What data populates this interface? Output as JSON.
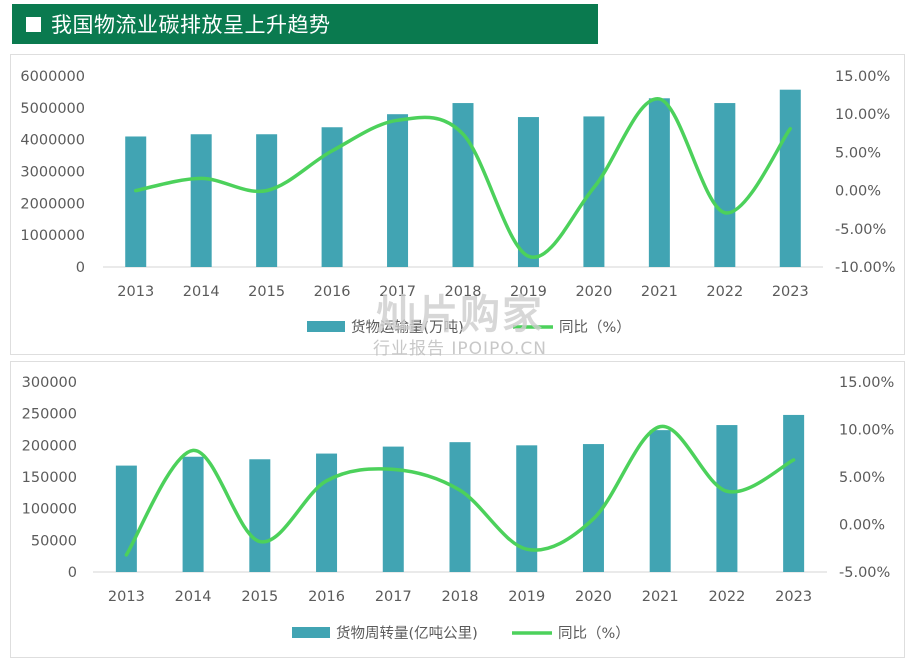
{
  "header": {
    "title": "我国物流业碳排放呈上升趋势"
  },
  "watermark": {
    "main": "灿片购家",
    "sub": "行业报告 IPOIPO.CN"
  },
  "colors": {
    "header_bg": "#0a7a4f",
    "bar": "#41a4b3",
    "line": "#4cd15b",
    "axis_text": "#5b5b5b"
  },
  "chart_data": [
    {
      "type": "bar",
      "categories": [
        "2013",
        "2014",
        "2015",
        "2016",
        "2017",
        "2018",
        "2019",
        "2020",
        "2021",
        "2022",
        "2023"
      ],
      "series": [
        {
          "name": "货物运输量(万吨)",
          "type": "bar",
          "axis": "left",
          "values": [
            4100000,
            4170000,
            4170000,
            4390000,
            4800000,
            5150000,
            4710000,
            4730000,
            5300000,
            5150000,
            5570000
          ]
        },
        {
          "name": "同比（%）",
          "type": "line",
          "axis": "right",
          "values": [
            0.0,
            1.6,
            0.0,
            5.2,
            9.2,
            7.4,
            -8.6,
            0.4,
            12.0,
            -2.9,
            8.1
          ]
        }
      ],
      "yleft": {
        "min": 0,
        "max": 6000000,
        "ticks": [
          "6000000",
          "5000000",
          "4000000",
          "3000000",
          "2000000",
          "1000000",
          "0"
        ]
      },
      "yright": {
        "min": -10,
        "max": 15,
        "ticks": [
          "15.00%",
          "10.00%",
          "5.00%",
          "0.00%",
          "-5.00%",
          "-10.00%"
        ]
      },
      "legend_position": "bottom"
    },
    {
      "type": "bar",
      "categories": [
        "2013",
        "2014",
        "2015",
        "2016",
        "2017",
        "2018",
        "2019",
        "2020",
        "2021",
        "2022",
        "2023"
      ],
      "series": [
        {
          "name": "货物周转量(亿吨公里)",
          "type": "bar",
          "axis": "left",
          "values": [
            168000,
            182000,
            178000,
            187000,
            198000,
            205000,
            200000,
            202000,
            224000,
            232000,
            248000
          ]
        },
        {
          "name": "同比（%）",
          "type": "line",
          "axis": "right",
          "values": [
            -3.2,
            7.8,
            -1.8,
            4.6,
            5.8,
            3.6,
            -2.6,
            0.6,
            10.3,
            3.5,
            6.8
          ]
        }
      ],
      "yleft": {
        "min": 0,
        "max": 300000,
        "ticks": [
          "300000",
          "250000",
          "200000",
          "150000",
          "100000",
          "50000",
          "0"
        ]
      },
      "yright": {
        "min": -5,
        "max": 15,
        "ticks": [
          "15.00%",
          "10.00%",
          "5.00%",
          "0.00%",
          "-5.00%"
        ]
      },
      "legend_position": "bottom"
    }
  ]
}
